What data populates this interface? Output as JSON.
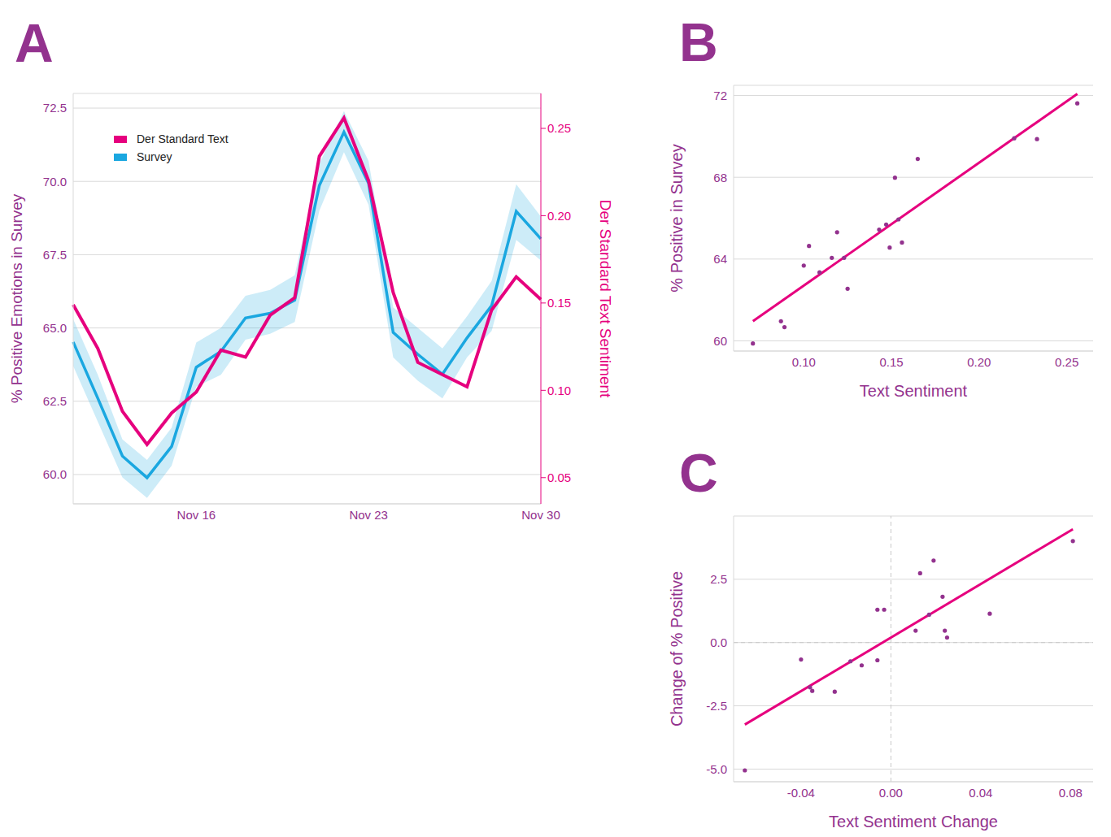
{
  "chart_data": [
    {
      "type": "line",
      "title": "A",
      "categories": [
        null,
        null,
        null,
        null,
        null,
        "Nov 16",
        null,
        null,
        null,
        null,
        null,
        null,
        "Nov 23",
        null,
        null,
        null,
        null,
        null,
        null,
        "Nov 30"
      ],
      "ylabel": "% Positive Emotions in Survey",
      "y2label": "Der Standard Text Sentiment",
      "ylim": [
        59,
        73
      ],
      "yticks": [
        {
          "value": 60,
          "label": "60.0"
        },
        62.5,
        {
          "value": 65,
          "label": "65.0"
        },
        67.5,
        {
          "value": 70,
          "label": "70.0"
        },
        72.5
      ],
      "y2lim": [
        0.035,
        0.27
      ],
      "y2ticks": [
        0.05,
        {
          "value": 0.1,
          "label": "0.10"
        },
        0.15,
        {
          "value": 0.2,
          "label": "0.20"
        },
        0.25
      ],
      "grid": true,
      "legend": "upper left",
      "series": [
        {
          "name": "Der Standard Text",
          "color": "#e6007e",
          "type": "line",
          "axis": "y2",
          "values": [
            0.149,
            0.124,
            0.088,
            0.069,
            0.087,
            0.099,
            0.123,
            0.119,
            0.143,
            0.153,
            0.234,
            0.256,
            0.22,
            0.156,
            0.116,
            0.109,
            0.102,
            0.146,
            0.165,
            0.152
          ]
        },
        {
          "name": "Survey",
          "color": "#1aa7e0",
          "type": "line",
          "axis": "y",
          "values": [
            64.52,
            62.6,
            60.63,
            59.89,
            60.96,
            63.66,
            64.2,
            65.34,
            65.5,
            65.95,
            69.86,
            71.68,
            69.94,
            64.85,
            64.1,
            63.42,
            64.66,
            65.76,
            68.98,
            68.04
          ],
          "lower": [
            63.7,
            61.8,
            59.9,
            59.2,
            60.3,
            63.0,
            63.4,
            64.6,
            64.8,
            65.2,
            69.0,
            71.0,
            69.2,
            64.0,
            63.2,
            62.6,
            64.0,
            64.9,
            68.0,
            67.3
          ],
          "upper": [
            65.3,
            63.4,
            61.2,
            60.5,
            61.6,
            64.5,
            65.0,
            66.1,
            66.3,
            66.8,
            70.6,
            72.4,
            70.7,
            65.7,
            65.0,
            64.3,
            65.4,
            66.6,
            69.9,
            68.8
          ]
        }
      ]
    },
    {
      "type": "scatter",
      "title": "B",
      "xlabel": "Text Sentiment",
      "ylabel": "% Positive in Survey",
      "xlim": [
        0.06,
        0.265
      ],
      "xticks": [
        {
          "value": 0.1,
          "label": "0.10"
        },
        0.15,
        {
          "value": 0.2,
          "label": "0.20"
        },
        0.25
      ],
      "ylim": [
        59.5,
        72.5
      ],
      "yticks": [
        60,
        64,
        68,
        72
      ],
      "grid": true,
      "color": "#93328e",
      "points": {
        "x": [
          0.071,
          0.087,
          0.089,
          0.1,
          0.103,
          0.109,
          0.116,
          0.119,
          0.123,
          0.125,
          0.143,
          0.147,
          0.149,
          0.152,
          0.154,
          0.156,
          0.165,
          0.22,
          0.233,
          0.256
        ],
        "y": [
          59.87,
          60.96,
          60.67,
          63.68,
          64.64,
          63.35,
          64.06,
          65.31,
          64.06,
          62.55,
          65.44,
          65.69,
          64.56,
          67.98,
          65.94,
          64.81,
          68.9,
          69.91,
          69.87,
          71.62
        ]
      },
      "fit_line": {
        "x": [
          0.071,
          0.256
        ],
        "y": [
          60.96,
          72.08
        ],
        "color": "#e6007e"
      }
    },
    {
      "type": "scatter",
      "title": "C",
      "xlabel": "Text Sentiment Change",
      "ylabel": "Change of % Positive",
      "xlim": [
        -0.07,
        0.09
      ],
      "xticks": [
        -0.04,
        {
          "value": 0,
          "label": "0.00"
        },
        0.04,
        0.08
      ],
      "ylim": [
        -5.5,
        5
      ],
      "yticks": [
        {
          "value": -5,
          "label": "-5.0"
        },
        -2.5,
        {
          "value": 0,
          "label": "0.0"
        },
        2.5
      ],
      "grid": true,
      "color": "#93328e",
      "points": {
        "x": [
          -0.065,
          -0.04,
          -0.036,
          -0.035,
          -0.025,
          -0.018,
          -0.013,
          -0.006,
          -0.006,
          -0.003,
          0.011,
          0.013,
          0.017,
          0.019,
          0.023,
          0.024,
          0.025,
          0.044,
          0.081
        ],
        "y": [
          -5.05,
          -0.67,
          -1.77,
          -1.91,
          -1.94,
          -0.74,
          -0.9,
          -0.7,
          1.3,
          1.3,
          0.47,
          2.74,
          1.1,
          3.24,
          1.81,
          0.47,
          0.2,
          1.14,
          4.01
        ]
      },
      "fit_line": {
        "x": [
          -0.065,
          0.081
        ],
        "y": [
          -3.24,
          4.48
        ],
        "color": "#e6007e"
      }
    }
  ]
}
